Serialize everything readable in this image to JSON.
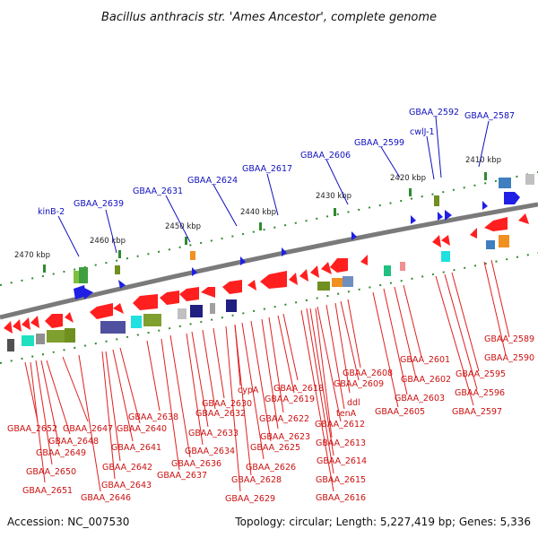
{
  "title": "Bacillus anthracis str. 'Ames Ancestor', complete genome",
  "footer": {
    "accession": "Accession: NC_007530",
    "summary": "Topology: circular; Length: 5,227,419 bp; Genes: 5,336"
  },
  "kbp_ticks": [
    "2470 kbp",
    "2460 kbp",
    "2450 kbp",
    "2440 kbp",
    "2430 kbp",
    "2420 kbp",
    "2410 kbp"
  ],
  "top_labels": [
    "kinB-2",
    "GBAA_2639",
    "GBAA_2631",
    "GBAA_2624",
    "GBAA_2617",
    "GBAA_2606",
    "GBAA_2599",
    "cwlJ-1",
    "GBAA_2592",
    "GBAA_2587"
  ],
  "bottom_labels": [
    "GBAA_2652",
    "GBAA_2651",
    "GBAA_2650",
    "GBAA_2649",
    "GBAA_2648",
    "GBAA_2647",
    "GBAA_2646",
    "GBAA_2643",
    "GBAA_2642",
    "GBAA_2641",
    "GBAA_2640",
    "GBAA_2638",
    "GBAA_2637",
    "GBAA_2636",
    "GBAA_2634",
    "GBAA_2633",
    "GBAA_2632",
    "GBAA_2630",
    "cypA",
    "GBAA_2629",
    "GBAA_2628",
    "GBAA_2626",
    "GBAA_2625",
    "GBAA_2623",
    "GBAA_2622",
    "GBAA_2619",
    "GBAA_2618",
    "GBAA_2616",
    "GBAA_2615",
    "GBAA_2614",
    "GBAA_2613",
    "GBAA_2612",
    "tenA",
    "ddl",
    "GBAA_2609",
    "GBAA_2608",
    "GBAA_2605",
    "GBAA_2603",
    "GBAA_2602",
    "GBAA_2601",
    "GBAA_2597",
    "GBAA_2596",
    "GBAA_2595",
    "GBAA_2590",
    "GBAA_2589"
  ],
  "colors": {
    "forward": "#1f1fe6",
    "reverse": "#ff1f1f",
    "backbone": "#808080",
    "tick": "#2f8a2f"
  }
}
